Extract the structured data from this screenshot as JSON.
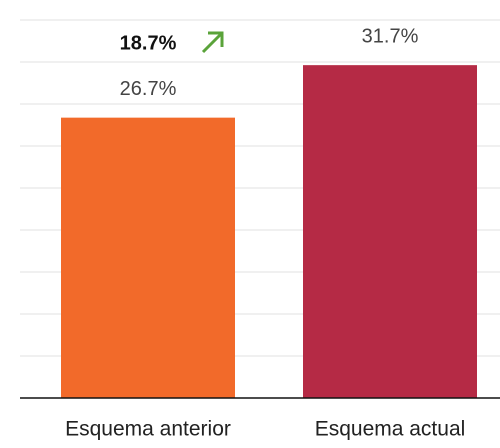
{
  "chart_data": {
    "type": "bar",
    "categories": [
      "Esquema anterior",
      "Esquema actual"
    ],
    "values": [
      26.7,
      31.7
    ],
    "value_labels": [
      "26.7%",
      "31.7%"
    ],
    "colors": [
      "#f26a2a",
      "#b52a45"
    ],
    "annotation": "18.7%",
    "ylim": [
      0,
      36
    ],
    "yticks": [
      0,
      4,
      8,
      12,
      16,
      20,
      24,
      28,
      32,
      36
    ],
    "grid": true
  }
}
